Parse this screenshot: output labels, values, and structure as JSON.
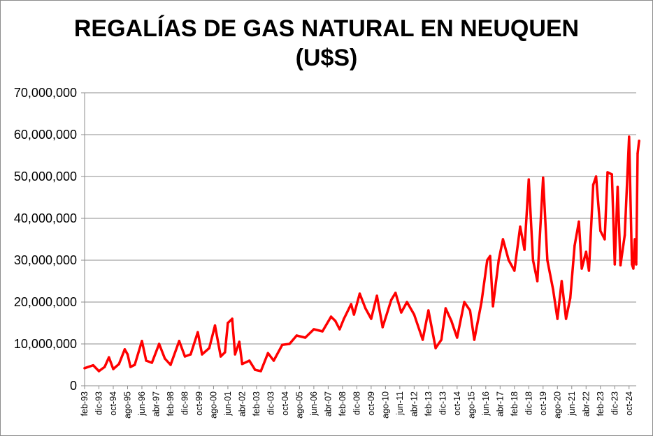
{
  "chart_data": {
    "type": "line",
    "title": "REGALÍAS DE GAS NATURAL EN NEUQUEN",
    "subtitle": "(U$S)",
    "xlabel": "",
    "ylabel": "",
    "ylim": [
      0,
      70000000
    ],
    "yticks": [
      "0",
      "10,000,000",
      "20,000,000",
      "30,000,000",
      "40,000,000",
      "50,000,000",
      "60,000,000",
      "70,000,000"
    ],
    "grid": true,
    "legend": "none",
    "x_range": [
      "1993-02",
      "2025-03"
    ],
    "xtick_labels": [
      {
        "date": "1993-02",
        "label": "feb-93"
      },
      {
        "date": "1993-12",
        "label": "dic-93"
      },
      {
        "date": "1994-10",
        "label": "oct-94"
      },
      {
        "date": "1995-08",
        "label": "ago-95"
      },
      {
        "date": "1996-06",
        "label": "jun-96"
      },
      {
        "date": "1997-04",
        "label": "abr-97"
      },
      {
        "date": "1998-02",
        "label": "feb-98"
      },
      {
        "date": "1998-12",
        "label": "dic-98"
      },
      {
        "date": "1999-10",
        "label": "oct-99"
      },
      {
        "date": "2000-08",
        "label": "ago-00"
      },
      {
        "date": "2001-06",
        "label": "jun-01"
      },
      {
        "date": "2002-04",
        "label": "abr-02"
      },
      {
        "date": "2003-02",
        "label": "feb-03"
      },
      {
        "date": "2003-12",
        "label": "dic-03"
      },
      {
        "date": "2004-10",
        "label": "oct-04"
      },
      {
        "date": "2005-08",
        "label": "ago-05"
      },
      {
        "date": "2006-06",
        "label": "jun-06"
      },
      {
        "date": "2007-04",
        "label": "abr-07"
      },
      {
        "date": "2008-02",
        "label": "feb-08"
      },
      {
        "date": "2008-12",
        "label": "dic-08"
      },
      {
        "date": "2009-10",
        "label": "oct-09"
      },
      {
        "date": "2010-08",
        "label": "ago-10"
      },
      {
        "date": "2011-06",
        "label": "jun-11"
      },
      {
        "date": "2012-04",
        "label": "abr-12"
      },
      {
        "date": "2013-02",
        "label": "feb-13"
      },
      {
        "date": "2013-12",
        "label": "dic-13"
      },
      {
        "date": "2014-10",
        "label": "oct-14"
      },
      {
        "date": "2015-08",
        "label": "ago-15"
      },
      {
        "date": "2016-06",
        "label": "jun-16"
      },
      {
        "date": "2017-04",
        "label": "abr-17"
      },
      {
        "date": "2018-02",
        "label": "feb-18"
      },
      {
        "date": "2018-12",
        "label": "dic-18"
      },
      {
        "date": "2019-10",
        "label": "oct-19"
      },
      {
        "date": "2020-08",
        "label": "ago-20"
      },
      {
        "date": "2021-06",
        "label": "jun-21"
      },
      {
        "date": "2022-04",
        "label": "abr-22"
      },
      {
        "date": "2023-02",
        "label": "feb-23"
      },
      {
        "date": "2023-12",
        "label": "dic-23"
      },
      {
        "date": "2024-10",
        "label": "oct-24"
      }
    ],
    "series": [
      {
        "color": "#ff0000",
        "points": [
          [
            "1993-02",
            4200000
          ],
          [
            "1993-08",
            4900000
          ],
          [
            "1993-12",
            3500000
          ],
          [
            "1994-04",
            4500000
          ],
          [
            "1994-07",
            6800000
          ],
          [
            "1994-10",
            4000000
          ],
          [
            "1995-02",
            5200000
          ],
          [
            "1995-06",
            8700000
          ],
          [
            "1995-08",
            7500000
          ],
          [
            "1995-10",
            4500000
          ],
          [
            "1996-01",
            5000000
          ],
          [
            "1996-06",
            10700000
          ],
          [
            "1996-09",
            6000000
          ],
          [
            "1997-01",
            5500000
          ],
          [
            "1997-06",
            10000000
          ],
          [
            "1997-10",
            6500000
          ],
          [
            "1998-02",
            5000000
          ],
          [
            "1998-08",
            10700000
          ],
          [
            "1998-12",
            7000000
          ],
          [
            "1999-04",
            7500000
          ],
          [
            "1999-09",
            12800000
          ],
          [
            "1999-12",
            7500000
          ],
          [
            "2000-05",
            9000000
          ],
          [
            "2000-09",
            14400000
          ],
          [
            "2001-01",
            7000000
          ],
          [
            "2001-04",
            8000000
          ],
          [
            "2001-06",
            15000000
          ],
          [
            "2001-09",
            16000000
          ],
          [
            "2001-11",
            7500000
          ],
          [
            "2002-02",
            10500000
          ],
          [
            "2002-04",
            5200000
          ],
          [
            "2002-09",
            6000000
          ],
          [
            "2003-01",
            3800000
          ],
          [
            "2003-05",
            3500000
          ],
          [
            "2003-10",
            7800000
          ],
          [
            "2004-02",
            6000000
          ],
          [
            "2004-08",
            9800000
          ],
          [
            "2005-01",
            10000000
          ],
          [
            "2005-06",
            12000000
          ],
          [
            "2005-12",
            11500000
          ],
          [
            "2006-06",
            13500000
          ],
          [
            "2006-12",
            13000000
          ],
          [
            "2007-06",
            16500000
          ],
          [
            "2007-09",
            15500000
          ],
          [
            "2007-12",
            13500000
          ],
          [
            "2008-03",
            16000000
          ],
          [
            "2008-08",
            19500000
          ],
          [
            "2008-10",
            17000000
          ],
          [
            "2009-02",
            22000000
          ],
          [
            "2009-06",
            18500000
          ],
          [
            "2009-10",
            16000000
          ],
          [
            "2010-02",
            21500000
          ],
          [
            "2010-06",
            14000000
          ],
          [
            "2010-12",
            20500000
          ],
          [
            "2011-03",
            22200000
          ],
          [
            "2011-07",
            17500000
          ],
          [
            "2011-11",
            20000000
          ],
          [
            "2012-04",
            17000000
          ],
          [
            "2012-10",
            11000000
          ],
          [
            "2013-02",
            18000000
          ],
          [
            "2013-07",
            9000000
          ],
          [
            "2013-11",
            11000000
          ],
          [
            "2014-02",
            18500000
          ],
          [
            "2014-06",
            15500000
          ],
          [
            "2014-10",
            11500000
          ],
          [
            "2015-03",
            20000000
          ],
          [
            "2015-07",
            18000000
          ],
          [
            "2015-10",
            11000000
          ],
          [
            "2016-03",
            20000000
          ],
          [
            "2016-07",
            30000000
          ],
          [
            "2016-09",
            31000000
          ],
          [
            "2016-11",
            19000000
          ],
          [
            "2017-03",
            30000000
          ],
          [
            "2017-06",
            35000000
          ],
          [
            "2017-10",
            30000000
          ],
          [
            "2018-02",
            27500000
          ],
          [
            "2018-06",
            38000000
          ],
          [
            "2018-09",
            32500000
          ],
          [
            "2018-12",
            49300000
          ],
          [
            "2019-03",
            30000000
          ],
          [
            "2019-06",
            25000000
          ],
          [
            "2019-10",
            49700000
          ],
          [
            "2020-01",
            30000000
          ],
          [
            "2020-05",
            23000000
          ],
          [
            "2020-08",
            16000000
          ],
          [
            "2020-11",
            25000000
          ],
          [
            "2021-02",
            16000000
          ],
          [
            "2021-05",
            21000000
          ],
          [
            "2021-08",
            33500000
          ],
          [
            "2021-11",
            39200000
          ],
          [
            "2022-01",
            28000000
          ],
          [
            "2022-04",
            32000000
          ],
          [
            "2022-06",
            27500000
          ],
          [
            "2022-09",
            48000000
          ],
          [
            "2022-11",
            50000000
          ],
          [
            "2023-02",
            37000000
          ],
          [
            "2023-05",
            35000000
          ],
          [
            "2023-07",
            51000000
          ],
          [
            "2023-10",
            50500000
          ],
          [
            "2023-12",
            29000000
          ],
          [
            "2024-02",
            47500000
          ],
          [
            "2024-04",
            28800000
          ],
          [
            "2024-07",
            36000000
          ],
          [
            "2024-10",
            59500000
          ],
          [
            "2024-12",
            29000000
          ],
          [
            "2025-01",
            28000000
          ],
          [
            "2025-02",
            35000000
          ],
          [
            "2025-03",
            29000000
          ],
          [
            "2025-04",
            55500000
          ],
          [
            "2025-05",
            58500000
          ]
        ]
      }
    ]
  }
}
